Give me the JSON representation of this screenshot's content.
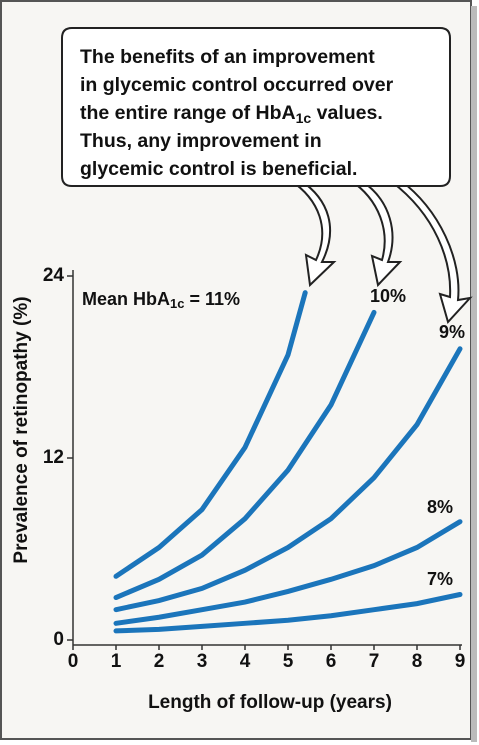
{
  "chart_data": {
    "type": "line",
    "callout": [
      [
        "The benefits of an improvement"
      ],
      [
        "in glycemic control occurred over"
      ],
      [
        "the entire range of HbA",
        "1c",
        " values."
      ],
      [
        "Thus, any improvement in"
      ],
      [
        "glycemic control is beneficial."
      ]
    ],
    "annotation": [
      "Mean HbA",
      "1c",
      " = "
    ],
    "xlabel": "Length of follow-up (years)",
    "ylabel": "Prevalence of retinopathy (%)",
    "xlim": [
      0,
      9
    ],
    "xticks": [
      0,
      1,
      2,
      3,
      4,
      5,
      6,
      7,
      8,
      9
    ],
    "ylim": [
      0,
      24
    ],
    "yticks": [
      0,
      12,
      24
    ],
    "series": [
      {
        "name": "11%",
        "color": "#1b75bb",
        "x": [
          1,
          2,
          3,
          4,
          5,
          5.4
        ],
        "values": [
          4.2,
          6.1,
          8.6,
          12.7,
          18.8,
          22.9
        ]
      },
      {
        "name": "10%",
        "color": "#1b75bb",
        "x": [
          1,
          2,
          3,
          4,
          5,
          6,
          7
        ],
        "values": [
          2.8,
          4.0,
          5.6,
          8.0,
          11.2,
          15.5,
          21.6
        ]
      },
      {
        "name": "9%",
        "color": "#1b75bb",
        "x": [
          1,
          2,
          3,
          4,
          5,
          6,
          7,
          8,
          9
        ],
        "values": [
          2.0,
          2.6,
          3.4,
          4.6,
          6.1,
          8.0,
          10.7,
          14.2,
          19.2
        ]
      },
      {
        "name": "8%",
        "color": "#1b75bb",
        "x": [
          1,
          2,
          3,
          4,
          5,
          6,
          7,
          8,
          9
        ],
        "values": [
          1.1,
          1.5,
          2.0,
          2.5,
          3.2,
          4.0,
          4.9,
          6.1,
          7.8
        ]
      },
      {
        "name": "7%",
        "color": "#1b75bb",
        "x": [
          1,
          2,
          3,
          4,
          5,
          6,
          7,
          8,
          9
        ],
        "values": [
          0.6,
          0.7,
          0.9,
          1.1,
          1.3,
          1.6,
          2.0,
          2.4,
          3.0
        ]
      }
    ]
  }
}
